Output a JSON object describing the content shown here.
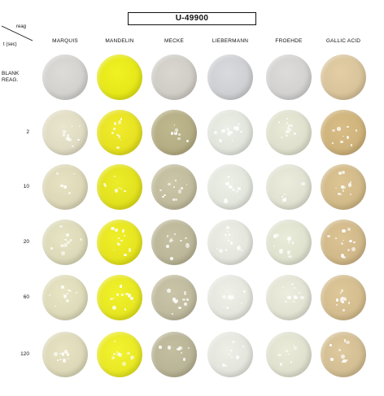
{
  "title": "U-49900",
  "axis": {
    "reagent_label": "reag",
    "time_label": "t (sec)"
  },
  "reagents": [
    "MARQUIS",
    "MANDELIN",
    "MECKE",
    "LIEBERMANN",
    "FROEHDE",
    "GALLIC ACID"
  ],
  "rows": [
    {
      "label_line1": "BLANK",
      "label_line2": "REAG."
    },
    {
      "label_line1": "2",
      "label_line2": ""
    },
    {
      "label_line1": "10",
      "label_line2": ""
    },
    {
      "label_line1": "20",
      "label_line2": ""
    },
    {
      "label_line1": "60",
      "label_line2": ""
    },
    {
      "label_line1": "120",
      "label_line2": ""
    }
  ],
  "well_colors": [
    [
      "#d3d2cf",
      "#e6e81a",
      "#d0cdc6",
      "#cfd0d3",
      "#d3d2d1",
      "#d9c49b"
    ],
    [
      "#e0dcc4",
      "#e7e222",
      "#b5ae85",
      "#e1e5dc",
      "#dfe0cd",
      "#cfb37c"
    ],
    [
      "#ddd8b8",
      "#e3e21f",
      "#c2bc9e",
      "#e3e6dd",
      "#e1e2d2",
      "#d2ba89"
    ],
    [
      "#dcdab9",
      "#e6e520",
      "#bcb799",
      "#e4e6dd",
      "#e0e2d0",
      "#d1b98a"
    ],
    [
      "#dedbba",
      "#e7e722",
      "#c0bb9f",
      "#e5e7de",
      "#e2e3d3",
      "#d4bd8f"
    ],
    [
      "#ddd9b9",
      "#e9e926",
      "#bab597",
      "#e4e6de",
      "#e0e1cf",
      "#d4bf94"
    ]
  ],
  "speckle_color": "#ffffff"
}
